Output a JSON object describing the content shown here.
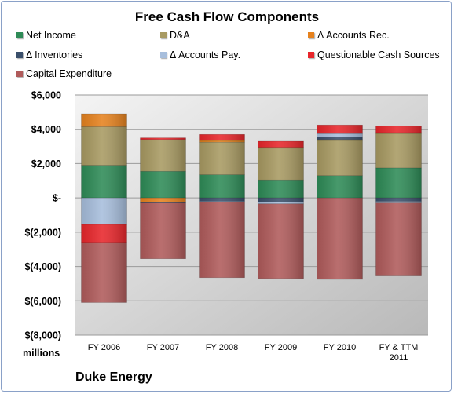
{
  "chart_data": {
    "type": "bar",
    "stacked": true,
    "title": "Free Cash Flow Components",
    "units_label": "millions",
    "footer": "Duke Energy",
    "categories": [
      "FY 2006",
      "FY 2007",
      "FY 2008",
      "FY 2009",
      "FY 2010",
      "FY & TTM 2011"
    ],
    "category_lines": [
      [
        "FY 2006"
      ],
      [
        "FY 2007"
      ],
      [
        "FY 2008"
      ],
      [
        "FY 2009"
      ],
      [
        "FY 2010"
      ],
      [
        "FY & TTM",
        "2011"
      ]
    ],
    "ylim": [
      -8000,
      6000
    ],
    "y_ticks": [
      6000,
      4000,
      2000,
      0,
      -2000,
      -4000,
      -6000,
      -8000
    ],
    "y_tick_labels": [
      "$6,000",
      "$4,000",
      "$2,000",
      "$-",
      "$(2,000)",
      "$(4,000)",
      "$(6,000)",
      "$(8,000)"
    ],
    "grid": true,
    "legend_position": "top",
    "series": [
      {
        "name": "Net Income",
        "color": "#2e8b57",
        "values": [
          1900,
          1550,
          1350,
          1050,
          1300,
          1750
        ]
      },
      {
        "name": "D&A",
        "color": "#a89a62",
        "values": [
          2250,
          1850,
          1900,
          1850,
          2050,
          2000
        ]
      },
      {
        "name": "Δ Accounts Rec.",
        "color": "#e6821e",
        "values": [
          750,
          -250,
          100,
          50,
          50,
          50
        ]
      },
      {
        "name": "Δ Inventories",
        "color": "#3a4f6b",
        "values": [
          0,
          -50,
          -200,
          -250,
          150,
          -200
        ]
      },
      {
        "name": "Δ Accounts Pay.",
        "color": "#a7bedc",
        "values": [
          -1550,
          0,
          -50,
          -100,
          200,
          -100
        ]
      },
      {
        "name": "Questionable Cash Sources",
        "color": "#e8262b",
        "values": [
          -1050,
          100,
          350,
          350,
          500,
          400
        ]
      },
      {
        "name": "Capital Expenditure",
        "color": "#b05b5b",
        "values": [
          -3500,
          -3250,
          -4400,
          -4350,
          -4750,
          -4250
        ]
      }
    ]
  }
}
